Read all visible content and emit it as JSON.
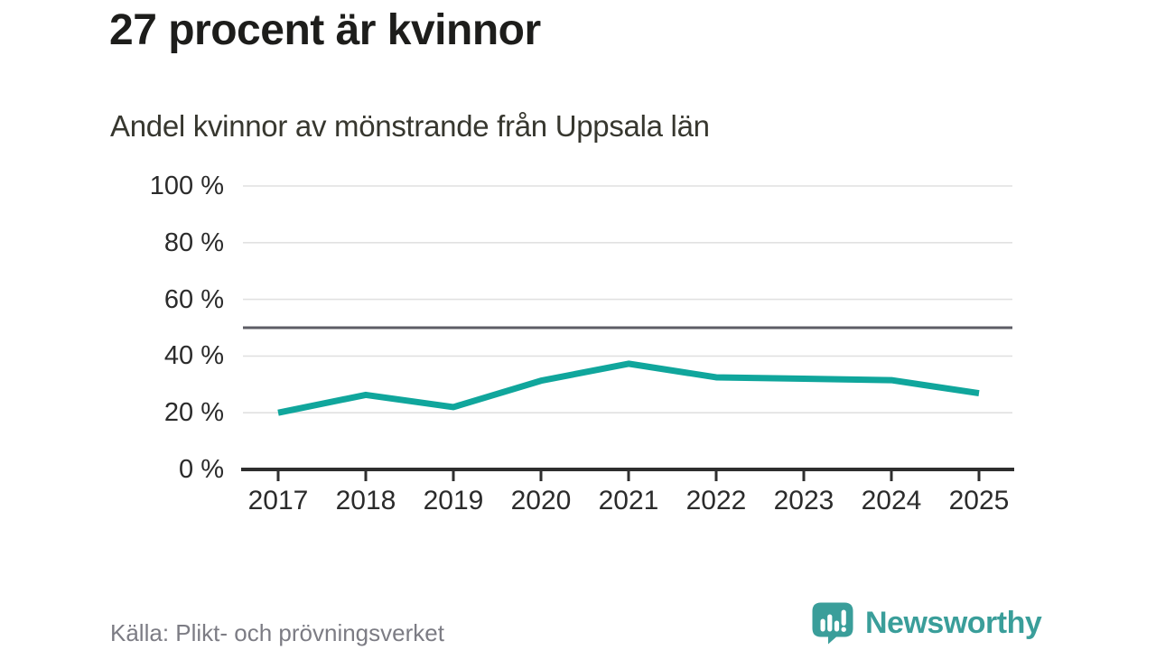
{
  "header": {
    "title": "27 procent är kvinnor",
    "subtitle": "Andel kvinnor av mönstrande från Uppsala län"
  },
  "chart_data": {
    "type": "line",
    "x": [
      "2017",
      "2018",
      "2019",
      "2020",
      "2021",
      "2022",
      "2023",
      "2024",
      "2025"
    ],
    "series": [
      {
        "name": "Andel kvinnor av mönstrande",
        "values": [
          20.0,
          26.3,
          22.0,
          31.3,
          37.3,
          32.5,
          32.0,
          31.5,
          26.9
        ]
      }
    ],
    "title": "27 procent är kvinnor",
    "subtitle": "Andel kvinnor av mönstrande från Uppsala län",
    "xlabel": "",
    "ylabel": "",
    "ylim": [
      0,
      100
    ],
    "yticks": [
      0,
      20,
      40,
      60,
      80,
      100
    ],
    "ytick_suffix": " %",
    "reference_line": {
      "value": 50
    },
    "grid": true,
    "legend_position": "none"
  },
  "footer": {
    "source": "Källa: Plikt- och prövningsverket",
    "logo_text": "Newsworthy"
  },
  "colors": {
    "accent": "#10a69c",
    "logo_teal": "#3a9e9a",
    "grid": "#e1e1e1",
    "reference": "#5d5d65",
    "axis": "#2e2e2e",
    "tick_text": "#2b2b2b",
    "muted_text": "#7c7c84"
  }
}
